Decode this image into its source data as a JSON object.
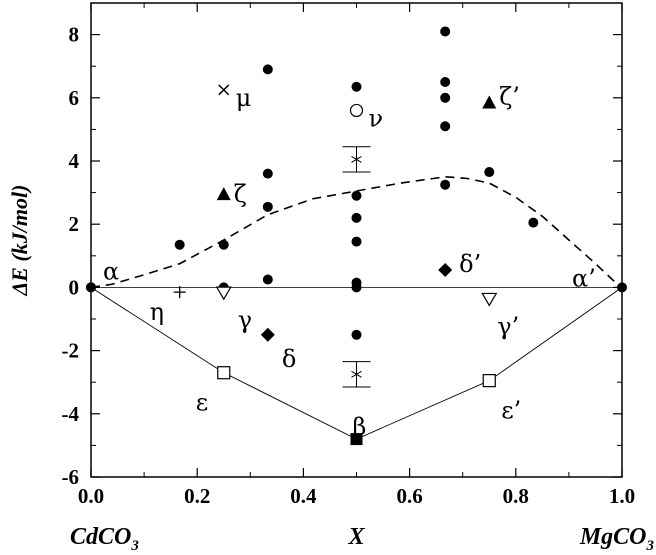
{
  "chart_data": {
    "type": "scatter",
    "xlabel": "X",
    "ylabel": "ΔE (kJ/mol)",
    "xlim": [
      0,
      1
    ],
    "ylim": [
      -6,
      9
    ],
    "xticks": [
      "0.0",
      "0.2",
      "0.4",
      "0.6",
      "0.8",
      "1.0"
    ],
    "yticks": [
      "-6",
      "-4",
      "-2",
      "0",
      "2",
      "4",
      "6",
      "8"
    ],
    "end_labels": {
      "left": "CdCO",
      "left_sub": "3",
      "right": "MgCO",
      "right_sub": "3"
    },
    "grid": false,
    "zero_line": true,
    "structures": {
      "x": [
        0.0,
        0.0,
        0.167,
        0.25,
        0.25,
        0.333,
        0.333,
        0.333,
        0.333,
        0.5,
        0.5,
        0.5,
        0.5,
        0.5,
        0.5,
        0.5,
        0.667,
        0.667,
        0.667,
        0.667,
        0.667,
        0.75,
        0.833,
        1.0
      ],
      "y": [
        0.0,
        0.0,
        1.35,
        1.35,
        0.0,
        6.9,
        3.6,
        2.55,
        0.25,
        6.35,
        2.9,
        2.2,
        1.45,
        0.15,
        -1.5,
        0.0,
        8.1,
        6.5,
        6.0,
        5.1,
        3.25,
        3.65,
        2.05,
        0.0
      ]
    },
    "ground_state_hull": {
      "x": [
        0.0,
        0.25,
        0.5,
        0.75,
        1.0
      ],
      "y": [
        0.0,
        -2.7,
        -4.8,
        -2.95,
        0.0
      ]
    },
    "mixing_curve": {
      "style": "dashed",
      "x": [
        0.0,
        0.04,
        0.1,
        0.167,
        0.25,
        0.333,
        0.417,
        0.5,
        0.583,
        0.667,
        0.708,
        0.75,
        0.8,
        0.85,
        0.9,
        0.95,
        0.985,
        1.0
      ],
      "y": [
        0.0,
        0.1,
        0.4,
        0.75,
        1.5,
        2.3,
        2.8,
        3.05,
        3.3,
        3.5,
        3.45,
        3.3,
        2.85,
        2.25,
        1.5,
        0.75,
        0.2,
        0.0
      ]
    },
    "labeled_structures": [
      {
        "label": "α",
        "x": 0.0,
        "y": 0.0,
        "marker": "none"
      },
      {
        "label": "η",
        "x": 0.167,
        "y": -0.15,
        "marker": "plus"
      },
      {
        "label": "γ",
        "x": 0.25,
        "y": -0.15,
        "marker": "triangle-down-open"
      },
      {
        "label": "ζ",
        "x": 0.25,
        "y": 2.95,
        "marker": "triangle-up-filled"
      },
      {
        "label": "μ",
        "x": 0.25,
        "y": 6.25,
        "marker": "cross"
      },
      {
        "label": "ε",
        "x": 0.25,
        "y": -2.7,
        "marker": "square-open"
      },
      {
        "label": "δ",
        "x": 0.333,
        "y": -1.5,
        "marker": "diamond-filled"
      },
      {
        "label": "ν",
        "x": 0.5,
        "y": 5.6,
        "marker": "circle-open"
      },
      {
        "label": "β",
        "x": 0.5,
        "y": -4.8,
        "marker": "square-filled"
      },
      {
        "label": "δ’",
        "x": 0.667,
        "y": 0.55,
        "marker": "diamond-filled"
      },
      {
        "label": "ζ’",
        "x": 0.75,
        "y": 5.85,
        "marker": "triangle-up-filled"
      },
      {
        "label": "γ’",
        "x": 0.75,
        "y": -0.35,
        "marker": "triangle-down-open"
      },
      {
        "label": "ε’",
        "x": 0.75,
        "y": -2.95,
        "marker": "square-open"
      },
      {
        "label": "α’",
        "x": 1.0,
        "y": 0.0,
        "marker": "none"
      }
    ],
    "errorbar_points": [
      {
        "x": 0.5,
        "y": 4.05,
        "lo": 3.65,
        "hi": 4.45
      },
      {
        "x": 0.5,
        "y": -2.75,
        "lo": -3.15,
        "hi": -2.35
      }
    ]
  }
}
